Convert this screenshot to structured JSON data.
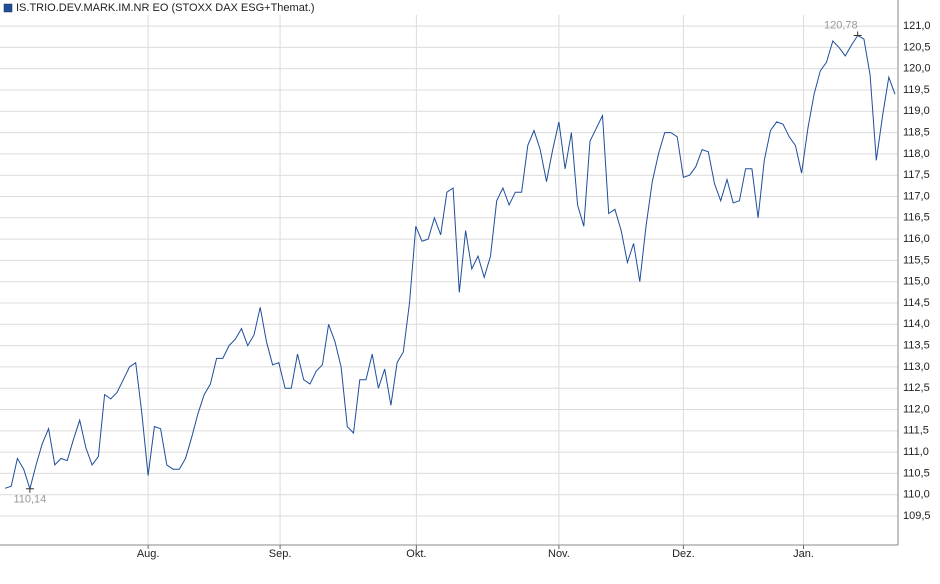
{
  "chart_data": {
    "type": "line",
    "series": [
      {
        "name": "IS.TRIO.DEV.MARK.IM.NR EO (STOXX DAX ESG+Themat.)",
        "color": "#1f4e9c",
        "values": [
          110.15,
          110.2,
          110.85,
          110.6,
          110.14,
          110.7,
          111.2,
          111.55,
          110.7,
          110.85,
          110.8,
          111.3,
          111.75,
          111.1,
          110.7,
          110.9,
          112.35,
          112.25,
          112.4,
          112.7,
          113.0,
          113.1,
          111.9,
          110.45,
          111.6,
          111.55,
          110.7,
          110.6,
          110.6,
          110.85,
          111.35,
          111.9,
          112.35,
          112.6,
          113.2,
          113.2,
          113.5,
          113.65,
          113.9,
          113.5,
          113.75,
          114.4,
          113.6,
          113.05,
          113.1,
          112.5,
          112.5,
          113.3,
          112.7,
          112.6,
          112.9,
          113.05,
          114.0,
          113.6,
          113.0,
          111.6,
          111.45,
          112.7,
          112.7,
          113.3,
          112.5,
          112.95,
          112.1,
          113.1,
          113.35,
          114.5,
          116.3,
          115.95,
          116.0,
          116.5,
          116.1,
          117.1,
          117.2,
          114.75,
          116.2,
          115.3,
          115.6,
          115.1,
          115.6,
          116.9,
          117.2,
          116.8,
          117.1,
          117.1,
          118.2,
          118.55,
          118.1,
          117.35,
          118.1,
          118.75,
          117.65,
          118.5,
          116.8,
          116.3,
          118.3,
          118.6,
          118.9,
          116.6,
          116.7,
          116.2,
          115.45,
          115.9,
          115.0,
          116.3,
          117.35,
          118.0,
          118.5,
          118.5,
          118.4,
          117.45,
          117.5,
          117.7,
          118.1,
          118.05,
          117.3,
          116.9,
          117.4,
          116.85,
          116.9,
          117.65,
          117.65,
          116.5,
          117.85,
          118.55,
          118.75,
          118.7,
          118.4,
          118.2,
          117.55,
          118.6,
          119.4,
          119.95,
          120.15,
          120.65,
          120.5,
          120.3,
          120.55,
          120.78,
          120.7,
          119.85,
          117.85,
          118.9,
          119.8,
          119.4
        ]
      }
    ],
    "annotations": [
      {
        "value": 120.78,
        "label": "120,78",
        "position": "above"
      },
      {
        "value": 110.14,
        "label": "110,14",
        "position": "below"
      }
    ],
    "xlim": [
      0,
      143
    ],
    "xticks": [
      {
        "value": 23,
        "label": "Aug."
      },
      {
        "value": 44.2,
        "label": "Sep."
      },
      {
        "value": 66.1,
        "label": "Okt."
      },
      {
        "value": 89,
        "label": "Nov."
      },
      {
        "value": 109,
        "label": "Dez."
      },
      {
        "value": 128.3,
        "label": "Jan."
      }
    ],
    "ylim": [
      108.82,
      121.26
    ],
    "yticks": [
      {
        "value": 109.5,
        "label": "109,5"
      },
      {
        "value": 110,
        "label": "110,0"
      },
      {
        "value": 110.5,
        "label": "110,5"
      },
      {
        "value": 111,
        "label": "111,0"
      },
      {
        "value": 111.5,
        "label": "111,5"
      },
      {
        "value": 112,
        "label": "112,0"
      },
      {
        "value": 112.5,
        "label": "112,5"
      },
      {
        "value": 113,
        "label": "113,0"
      },
      {
        "value": 113.5,
        "label": "113,5"
      },
      {
        "value": 114,
        "label": "114,0"
      },
      {
        "value": 114.5,
        "label": "114,5"
      },
      {
        "value": 115,
        "label": "115,0"
      },
      {
        "value": 115.5,
        "label": "115,5"
      },
      {
        "value": 116,
        "label": "116,0"
      },
      {
        "value": 116.5,
        "label": "116,5"
      },
      {
        "value": 117,
        "label": "117,0"
      },
      {
        "value": 117.5,
        "label": "117,5"
      },
      {
        "value": 118,
        "label": "118,0"
      },
      {
        "value": 118.5,
        "label": "118,5"
      },
      {
        "value": 119,
        "label": "119,0"
      },
      {
        "value": 119.5,
        "label": "119,5"
      },
      {
        "value": 120,
        "label": "120,0"
      },
      {
        "value": 120.5,
        "label": "120,5"
      },
      {
        "value": 121,
        "label": "121,0"
      }
    ],
    "grid": true
  }
}
